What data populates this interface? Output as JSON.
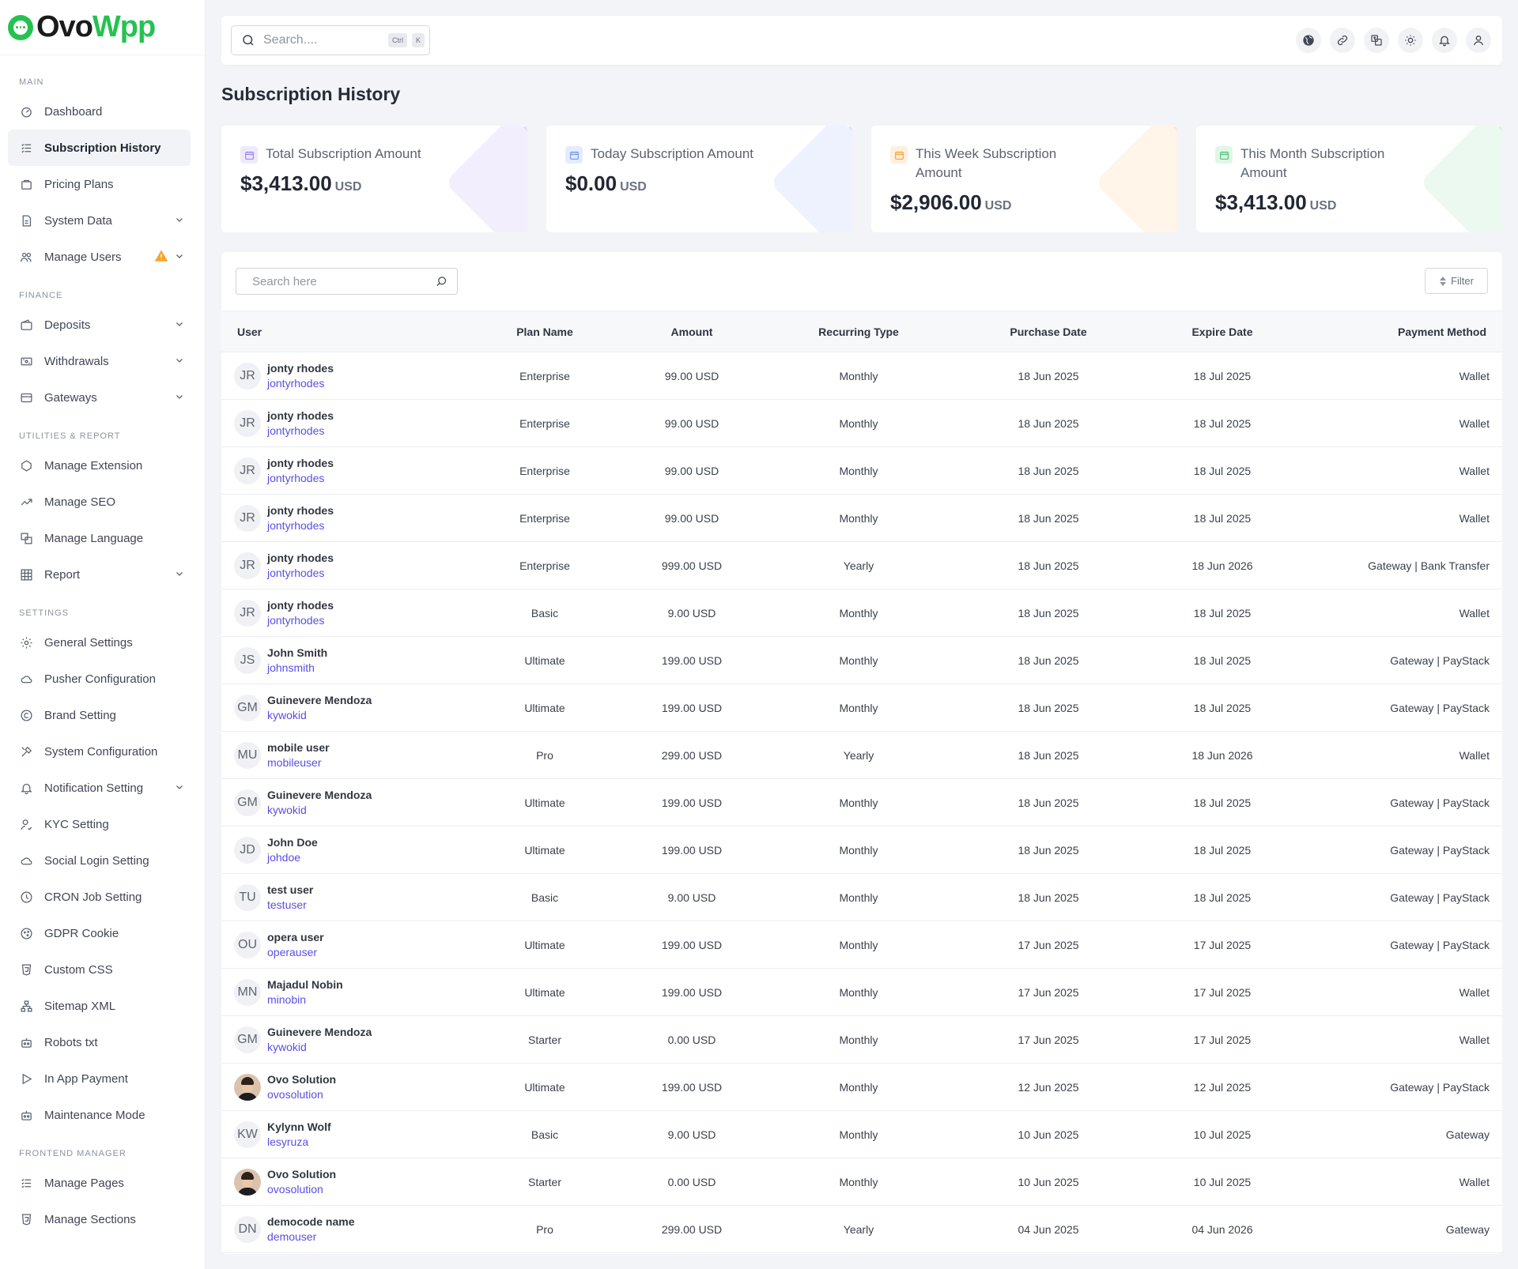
{
  "brand": {
    "name_a": "Ovo",
    "name_b": "Wpp"
  },
  "sidebar": {
    "sections": [
      {
        "title": "MAIN",
        "items": [
          {
            "label": "Dashboard",
            "icon": "dashboard-icon"
          },
          {
            "label": "Subscription History",
            "icon": "list-icon",
            "active": true
          },
          {
            "label": "Pricing Plans",
            "icon": "package-icon"
          },
          {
            "label": "System Data",
            "icon": "file-icon",
            "chevron": true
          },
          {
            "label": "Manage Users",
            "icon": "users-icon",
            "chevron": true,
            "warning": true
          }
        ]
      },
      {
        "title": "FINANCE",
        "items": [
          {
            "label": "Deposits",
            "icon": "wallet-icon",
            "chevron": true
          },
          {
            "label": "Withdrawals",
            "icon": "cash-icon",
            "chevron": true
          },
          {
            "label": "Gateways",
            "icon": "card-icon",
            "chevron": true
          }
        ]
      },
      {
        "title": "UTILITIES & REPORT",
        "items": [
          {
            "label": "Manage Extension",
            "icon": "puzzle-icon"
          },
          {
            "label": "Manage SEO",
            "icon": "trend-icon"
          },
          {
            "label": "Manage Language",
            "icon": "language-icon"
          },
          {
            "label": "Report",
            "icon": "table-icon",
            "chevron": true
          }
        ]
      },
      {
        "title": "SETTINGS",
        "items": [
          {
            "label": "General Settings",
            "icon": "gear-icon"
          },
          {
            "label": "Pusher Configuration",
            "icon": "cloud-icon"
          },
          {
            "label": "Brand Setting",
            "icon": "copyright-icon"
          },
          {
            "label": "System Configuration",
            "icon": "tools-icon"
          },
          {
            "label": "Notification Setting",
            "icon": "bell-icon",
            "chevron": true
          },
          {
            "label": "KYC Setting",
            "icon": "user-check-icon"
          },
          {
            "label": "Social Login Setting",
            "icon": "cloud-icon"
          },
          {
            "label": "CRON Job Setting",
            "icon": "clock-icon"
          },
          {
            "label": "GDPR Cookie",
            "icon": "cookie-icon"
          },
          {
            "label": "Custom CSS",
            "icon": "css-icon"
          },
          {
            "label": "Sitemap XML",
            "icon": "sitemap-icon"
          },
          {
            "label": "Robots txt",
            "icon": "robot-icon"
          },
          {
            "label": "In App Payment",
            "icon": "play-icon"
          },
          {
            "label": "Maintenance Mode",
            "icon": "robot-icon"
          }
        ]
      },
      {
        "title": "FRONTEND MANAGER",
        "items": [
          {
            "label": "Manage Pages",
            "icon": "list-icon"
          },
          {
            "label": "Manage Sections",
            "icon": "css-icon"
          }
        ]
      }
    ]
  },
  "topbar": {
    "search_placeholder": "Search....",
    "kbd_ctrl": "Ctrl",
    "kbd_k": "K",
    "icons": [
      "globe-icon",
      "link-icon",
      "translate-icon",
      "sun-icon",
      "bell-icon",
      "user-icon"
    ]
  },
  "page": {
    "title": "Subscription History"
  },
  "cards": [
    {
      "label": "Total Subscription Amount",
      "amount": "$3,413.00",
      "currency": "USD",
      "color": "#a78bfa",
      "bg": "#efe9fe",
      "deco1": "#f3eefe",
      "deco2": "#e4dafd"
    },
    {
      "label": "Today Subscription Amount",
      "amount": "$0.00",
      "currency": "USD",
      "color": "#7b9cf5",
      "bg": "#e5ecfd",
      "deco1": "#eef2fe",
      "deco2": "#dce5fd"
    },
    {
      "label": "This Week Subscription Amount",
      "amount": "$2,906.00",
      "currency": "USD",
      "color": "#f6a94a",
      "bg": "#fff0dc",
      "deco1": "#fff5e8",
      "deco2": "#ffe6c8"
    },
    {
      "label": "This Month Subscription Amount",
      "amount": "$3,413.00",
      "currency": "USD",
      "color": "#55c87a",
      "bg": "#e2f6e8",
      "deco1": "#ecf9f0",
      "deco2": "#d6f2df"
    }
  ],
  "table": {
    "search_placeholder": "Search here",
    "filter_label": "Filter",
    "headers": [
      "User",
      "Plan Name",
      "Amount",
      "Recurring Type",
      "Purchase Date",
      "Expire Date",
      "Payment Method"
    ],
    "rows": [
      {
        "initials": "JR",
        "name": "jonty rhodes",
        "handle": "jontyrhodes",
        "plan": "Enterprise",
        "amount": "99.00 USD",
        "recurring": "Monthly",
        "purchase": "18 Jun 2025",
        "expire": "18 Jul 2025",
        "method": "Wallet"
      },
      {
        "initials": "JR",
        "name": "jonty rhodes",
        "handle": "jontyrhodes",
        "plan": "Enterprise",
        "amount": "99.00 USD",
        "recurring": "Monthly",
        "purchase": "18 Jun 2025",
        "expire": "18 Jul 2025",
        "method": "Wallet"
      },
      {
        "initials": "JR",
        "name": "jonty rhodes",
        "handle": "jontyrhodes",
        "plan": "Enterprise",
        "amount": "99.00 USD",
        "recurring": "Monthly",
        "purchase": "18 Jun 2025",
        "expire": "18 Jul 2025",
        "method": "Wallet"
      },
      {
        "initials": "JR",
        "name": "jonty rhodes",
        "handle": "jontyrhodes",
        "plan": "Enterprise",
        "amount": "99.00 USD",
        "recurring": "Monthly",
        "purchase": "18 Jun 2025",
        "expire": "18 Jul 2025",
        "method": "Wallet"
      },
      {
        "initials": "JR",
        "name": "jonty rhodes",
        "handle": "jontyrhodes",
        "plan": "Enterprise",
        "amount": "999.00 USD",
        "recurring": "Yearly",
        "purchase": "18 Jun 2025",
        "expire": "18 Jun 2026",
        "method": "Gateway | Bank Transfer"
      },
      {
        "initials": "JR",
        "name": "jonty rhodes",
        "handle": "jontyrhodes",
        "plan": "Basic",
        "amount": "9.00 USD",
        "recurring": "Monthly",
        "purchase": "18 Jun 2025",
        "expire": "18 Jul 2025",
        "method": "Wallet"
      },
      {
        "initials": "JS",
        "name": "John Smith",
        "handle": "johnsmith",
        "plan": "Ultimate",
        "amount": "199.00 USD",
        "recurring": "Monthly",
        "purchase": "18 Jun 2025",
        "expire": "18 Jul 2025",
        "method": "Gateway | PayStack"
      },
      {
        "initials": "GM",
        "name": "Guinevere Mendoza",
        "handle": "kywokid",
        "plan": "Ultimate",
        "amount": "199.00 USD",
        "recurring": "Monthly",
        "purchase": "18 Jun 2025",
        "expire": "18 Jul 2025",
        "method": "Gateway | PayStack"
      },
      {
        "initials": "MU",
        "name": "mobile user",
        "handle": "mobileuser",
        "plan": "Pro",
        "amount": "299.00 USD",
        "recurring": "Yearly",
        "purchase": "18 Jun 2025",
        "expire": "18 Jun 2026",
        "method": "Wallet"
      },
      {
        "initials": "GM",
        "name": "Guinevere Mendoza",
        "handle": "kywokid",
        "plan": "Ultimate",
        "amount": "199.00 USD",
        "recurring": "Monthly",
        "purchase": "18 Jun 2025",
        "expire": "18 Jul 2025",
        "method": "Gateway | PayStack"
      },
      {
        "initials": "JD",
        "name": "John Doe",
        "handle": "johdoe",
        "plan": "Ultimate",
        "amount": "199.00 USD",
        "recurring": "Monthly",
        "purchase": "18 Jun 2025",
        "expire": "18 Jul 2025",
        "method": "Gateway | PayStack"
      },
      {
        "initials": "TU",
        "name": "test user",
        "handle": "testuser",
        "plan": "Basic",
        "amount": "9.00 USD",
        "recurring": "Monthly",
        "purchase": "18 Jun 2025",
        "expire": "18 Jul 2025",
        "method": "Gateway | PayStack"
      },
      {
        "initials": "OU",
        "name": "opera user",
        "handle": "operauser",
        "plan": "Ultimate",
        "amount": "199.00 USD",
        "recurring": "Monthly",
        "purchase": "17 Jun 2025",
        "expire": "17 Jul 2025",
        "method": "Gateway | PayStack"
      },
      {
        "initials": "MN",
        "name": "Majadul Nobin",
        "handle": "minobin",
        "plan": "Ultimate",
        "amount": "199.00 USD",
        "recurring": "Monthly",
        "purchase": "17 Jun 2025",
        "expire": "17 Jul 2025",
        "method": "Wallet"
      },
      {
        "initials": "GM",
        "name": "Guinevere Mendoza",
        "handle": "kywokid",
        "plan": "Starter",
        "amount": "0.00 USD",
        "recurring": "Monthly",
        "purchase": "17 Jun 2025",
        "expire": "17 Jul 2025",
        "method": "Wallet"
      },
      {
        "initials": "",
        "photo": true,
        "name": "Ovo Solution",
        "handle": "ovosolution",
        "plan": "Ultimate",
        "amount": "199.00 USD",
        "recurring": "Monthly",
        "purchase": "12 Jun 2025",
        "expire": "12 Jul 2025",
        "method": "Gateway | PayStack"
      },
      {
        "initials": "KW",
        "name": "Kylynn Wolf",
        "handle": "lesyruza",
        "plan": "Basic",
        "amount": "9.00 USD",
        "recurring": "Monthly",
        "purchase": "10 Jun 2025",
        "expire": "10 Jul 2025",
        "method": "Gateway"
      },
      {
        "initials": "",
        "photo": true,
        "name": "Ovo Solution",
        "handle": "ovosolution",
        "plan": "Starter",
        "amount": "0.00 USD",
        "recurring": "Monthly",
        "purchase": "10 Jun 2025",
        "expire": "10 Jul 2025",
        "method": "Wallet"
      },
      {
        "initials": "DN",
        "name": "democode name",
        "handle": "demouser",
        "plan": "Pro",
        "amount": "299.00 USD",
        "recurring": "Yearly",
        "purchase": "04 Jun 2025",
        "expire": "04 Jun 2026",
        "method": "Gateway"
      }
    ]
  }
}
